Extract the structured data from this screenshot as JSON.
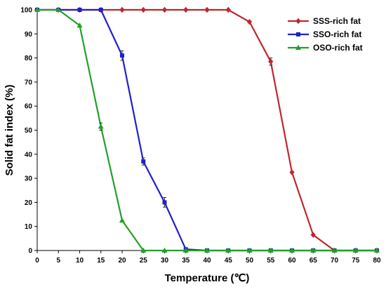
{
  "chart_data": {
    "type": "line",
    "xlabel": "Temperature (℃)",
    "ylabel": "Solid fat index (%)",
    "xlim": [
      0,
      80
    ],
    "ylim": [
      0,
      100
    ],
    "xticks": [
      0,
      5,
      10,
      15,
      20,
      25,
      30,
      35,
      40,
      45,
      50,
      55,
      60,
      65,
      70,
      75,
      80
    ],
    "yticks": [
      0,
      10,
      20,
      30,
      40,
      50,
      60,
      70,
      80,
      90,
      100
    ],
    "grid": false,
    "legend_position": "top-right",
    "x": [
      0,
      5,
      10,
      15,
      20,
      25,
      30,
      35,
      40,
      45,
      50,
      55,
      60,
      65,
      70,
      75,
      80
    ],
    "series": [
      {
        "name": "SSS-rich fat",
        "color": "#c0262b",
        "marker": "diamond",
        "values": [
          100,
          100,
          100,
          100,
          100,
          100,
          100,
          100,
          100,
          100,
          95,
          78.5,
          32.5,
          6.5,
          0,
          0,
          0
        ],
        "errors": [
          0,
          0,
          0,
          0,
          0,
          0,
          0,
          0,
          0,
          0,
          0,
          1.5,
          0,
          0,
          0,
          0,
          0
        ]
      },
      {
        "name": "SSO-rich fat",
        "color": "#1f1fd0",
        "marker": "square",
        "values": [
          100,
          100,
          100,
          100,
          81,
          37,
          20,
          0.5,
          0,
          0,
          0,
          0,
          0,
          0,
          0,
          0,
          0
        ],
        "errors": [
          0,
          0,
          0,
          0,
          2,
          1.5,
          2,
          0,
          0,
          0,
          0,
          0,
          0,
          0,
          0,
          0,
          0
        ]
      },
      {
        "name": "OSO-rich fat",
        "color": "#22a02a",
        "marker": "triangle",
        "values": [
          100,
          100,
          93.5,
          51.5,
          12.5,
          0,
          0,
          0,
          0,
          0,
          0,
          0,
          0,
          0,
          0,
          0,
          0
        ],
        "errors": [
          0,
          0,
          0,
          1.5,
          0,
          0,
          0,
          0,
          0,
          0,
          0,
          0,
          0,
          0,
          0,
          0,
          0
        ]
      }
    ]
  }
}
